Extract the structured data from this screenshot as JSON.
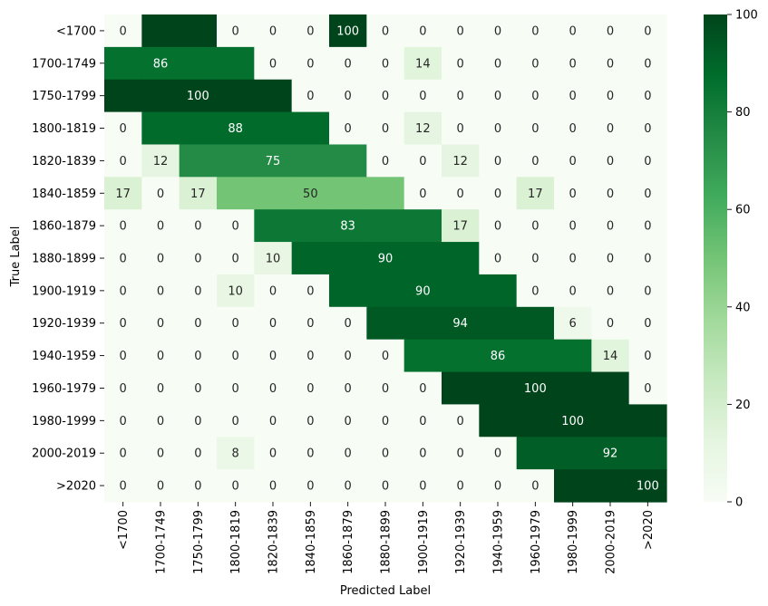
{
  "chart_data": {
    "type": "heatmap",
    "title": "",
    "xlabel": "Predicted Label",
    "ylabel": "True Label",
    "categories": [
      "<1700",
      "1700-1749",
      "1750-1799",
      "1800-1819",
      "1820-1839",
      "1840-1859",
      "1860-1879",
      "1880-1899",
      "1900-1919",
      "1920-1939",
      "1940-1959",
      "1960-1979",
      "1980-1999",
      "2000-2019",
      ">2020"
    ],
    "matrix": [
      [
        0,
        null,
        null,
        0,
        0,
        0,
        100,
        0,
        0,
        0,
        0,
        0,
        0,
        0,
        0
      ],
      [
        null,
        86,
        null,
        null,
        0,
        0,
        0,
        0,
        14,
        0,
        0,
        0,
        0,
        0,
        0
      ],
      [
        null,
        null,
        100,
        null,
        null,
        0,
        0,
        0,
        0,
        0,
        0,
        0,
        0,
        0,
        0
      ],
      [
        0,
        null,
        null,
        88,
        null,
        null,
        0,
        0,
        12,
        0,
        0,
        0,
        0,
        0,
        0
      ],
      [
        0,
        12,
        null,
        null,
        75,
        null,
        null,
        0,
        0,
        12,
        0,
        0,
        0,
        0,
        0
      ],
      [
        17,
        0,
        17,
        null,
        null,
        50,
        null,
        null,
        0,
        0,
        0,
        17,
        0,
        0,
        0
      ],
      [
        0,
        0,
        0,
        0,
        null,
        null,
        83,
        null,
        null,
        17,
        0,
        0,
        0,
        0,
        0
      ],
      [
        0,
        0,
        0,
        0,
        10,
        null,
        null,
        90,
        null,
        null,
        0,
        0,
        0,
        0,
        0
      ],
      [
        0,
        0,
        0,
        10,
        0,
        0,
        null,
        null,
        90,
        null,
        null,
        0,
        0,
        0,
        0
      ],
      [
        0,
        0,
        0,
        0,
        0,
        0,
        0,
        null,
        null,
        94,
        null,
        null,
        6,
        0,
        0
      ],
      [
        0,
        0,
        0,
        0,
        0,
        0,
        0,
        0,
        null,
        null,
        86,
        null,
        null,
        14,
        0
      ],
      [
        0,
        0,
        0,
        0,
        0,
        0,
        0,
        0,
        0,
        null,
        null,
        100,
        null,
        null,
        0
      ],
      [
        0,
        0,
        0,
        0,
        0,
        0,
        0,
        0,
        0,
        0,
        null,
        null,
        100,
        null,
        null
      ],
      [
        0,
        0,
        0,
        8,
        0,
        0,
        0,
        0,
        0,
        0,
        0,
        null,
        null,
        92,
        null
      ],
      [
        0,
        0,
        0,
        0,
        0,
        0,
        0,
        0,
        0,
        0,
        0,
        0,
        null,
        null,
        100
      ]
    ],
    "colorbar": {
      "min": 0,
      "max": 100,
      "ticks": [
        "0",
        "20",
        "40",
        "60",
        "80",
        "100"
      ]
    },
    "colormap": [
      "#f7fcf5",
      "#e5f5e0",
      "#c7e9c0",
      "#a1d99b",
      "#74c476",
      "#41ab5d",
      "#238b45",
      "#006d2c",
      "#00441b"
    ]
  }
}
